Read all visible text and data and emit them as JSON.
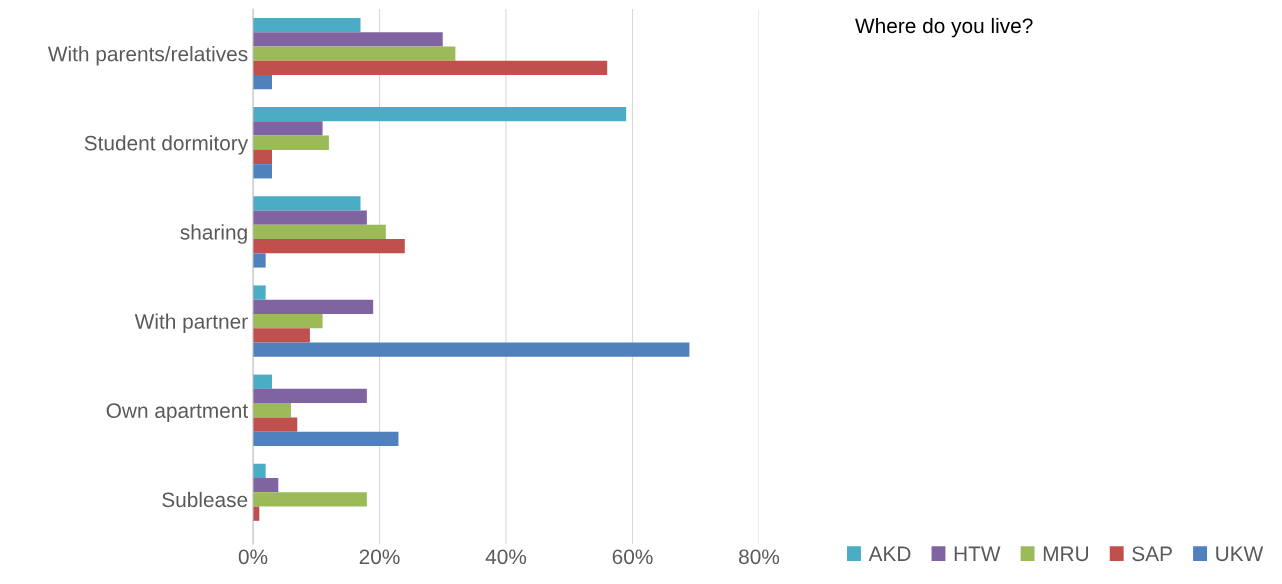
{
  "chart_data": {
    "type": "bar",
    "orientation": "horizontal",
    "title": "Where do you live?",
    "categories": [
      "With parents/relatives",
      "Student dormitory",
      "sharing",
      "With partner",
      "Own apartment",
      "Sublease"
    ],
    "series": [
      {
        "name": "AKD",
        "color": "#4bacc6",
        "values": [
          17,
          59,
          17,
          2,
          3,
          2
        ]
      },
      {
        "name": "HTW",
        "color": "#8064a2",
        "values": [
          30,
          11,
          18,
          19,
          18,
          4
        ]
      },
      {
        "name": "MRU",
        "color": "#9bbb59",
        "values": [
          32,
          12,
          21,
          11,
          6,
          18
        ]
      },
      {
        "name": "SAP",
        "color": "#c0504d",
        "values": [
          56,
          3,
          24,
          9,
          7,
          1
        ]
      },
      {
        "name": "UKW",
        "color": "#4f81bd",
        "values": [
          3,
          3,
          2,
          69,
          23,
          0
        ]
      }
    ],
    "xlim": [
      0,
      80
    ],
    "xticks": [
      {
        "value": 0,
        "label": "0%"
      },
      {
        "value": 20,
        "label": "20%"
      },
      {
        "value": 40,
        "label": "40%"
      },
      {
        "value": 60,
        "label": "60%"
      },
      {
        "value": 80,
        "label": "80%"
      }
    ],
    "grid": "x",
    "legend": "bottom right"
  }
}
